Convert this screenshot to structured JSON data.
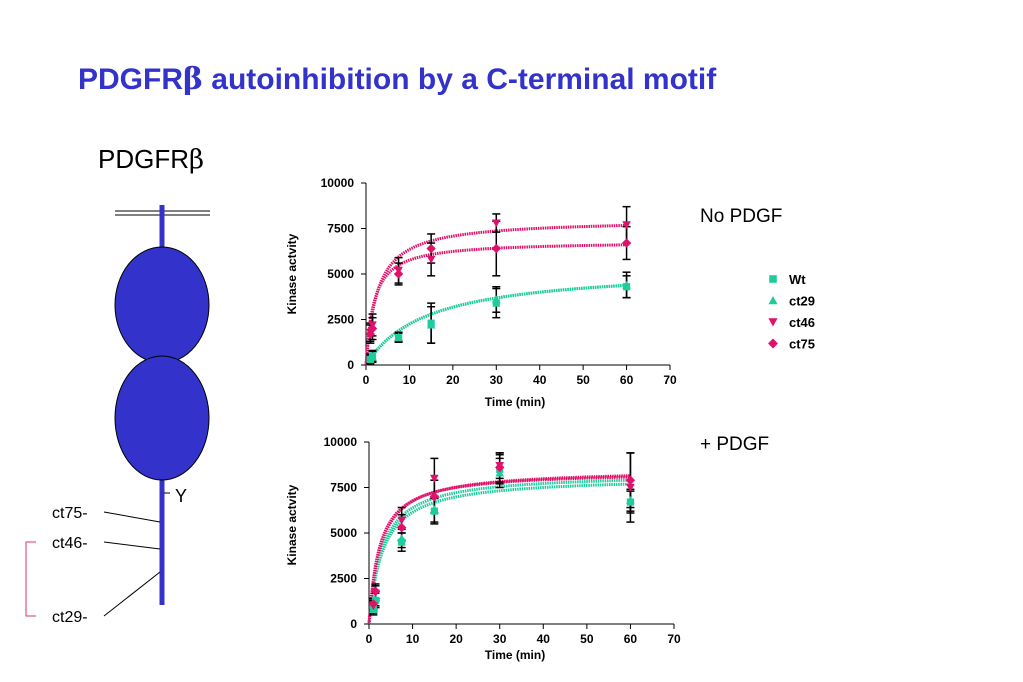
{
  "slide": {
    "title_prefix": "PDGFR",
    "title_suffix": " autoinhibition by a C-terminal motif"
  },
  "receptor": {
    "label": "PDGFR",
    "tyrosine_label": "Y",
    "truncations": [
      "ct75-",
      "ct46-",
      "ct29-"
    ],
    "domain_color": "#3333cc",
    "bracket_color": "#e0336f"
  },
  "legend": [
    {
      "name": "Wt",
      "marker": "square",
      "color": "#1fcc9c"
    },
    {
      "name": "ct29",
      "marker": "triangle-up",
      "color": "#1fcc9c"
    },
    {
      "name": "ct46",
      "marker": "triangle-down",
      "color": "#e0116a"
    },
    {
      "name": "ct75",
      "marker": "diamond",
      "color": "#e0116a"
    }
  ],
  "chart_data": [
    {
      "type": "scatter",
      "panel_label": "No PDGF",
      "xlabel": "Time (min)",
      "ylabel": "Kinase actvity",
      "xlim": [
        0,
        70
      ],
      "ylim": [
        0,
        10000
      ],
      "xticks": [
        0,
        10,
        20,
        30,
        40,
        50,
        60,
        70
      ],
      "yticks": [
        0,
        2500,
        5000,
        7500,
        10000
      ],
      "x": [
        1,
        1.5,
        7.5,
        15,
        30,
        60
      ],
      "series": [
        {
          "name": "Wt",
          "color": "#1fcc9c",
          "values": [
            300,
            500,
            1500,
            2300,
            3400,
            4300
          ],
          "errors": [
            250,
            300,
            250,
            1100,
            800,
            600
          ],
          "fit": {
            "vmax": 5400,
            "km": 14
          }
        },
        {
          "name": "ct29",
          "color": "#1fcc9c",
          "values": [
            350,
            450,
            1550,
            2200,
            3600,
            4400
          ],
          "errors": [
            250,
            300,
            250,
            1000,
            700,
            700
          ],
          "fit": {
            "vmax": 5400,
            "km": 14
          }
        },
        {
          "name": "ct46",
          "color": "#e0116a",
          "values": [
            1800,
            2200,
            5200,
            5800,
            7800,
            7700
          ],
          "errors": [
            500,
            600,
            700,
            900,
            500,
            1000
          ],
          "fit": {
            "vmax": 8000,
            "km": 2.6
          }
        },
        {
          "name": "ct75",
          "color": "#e0116a",
          "values": [
            1700,
            2000,
            5000,
            6400,
            6400,
            6700
          ],
          "errors": [
            500,
            600,
            600,
            800,
            1500,
            900
          ],
          "fit": {
            "vmax": 6800,
            "km": 1.8
          }
        }
      ]
    },
    {
      "type": "scatter",
      "panel_label": "+ PDGF",
      "xlabel": "Time (min)",
      "ylabel": "Kinase actvity",
      "xlim": [
        0,
        70
      ],
      "ylim": [
        0,
        10000
      ],
      "xticks": [
        0,
        10,
        20,
        30,
        40,
        50,
        60,
        70
      ],
      "yticks": [
        0,
        2500,
        5000,
        7500,
        10000
      ],
      "x": [
        1,
        1.5,
        7.5,
        15,
        30,
        60
      ],
      "series": [
        {
          "name": "Wt",
          "color": "#1fcc9c",
          "values": [
            900,
            1300,
            4500,
            6200,
            8500,
            6700
          ],
          "errors": [
            300,
            400,
            500,
            700,
            800,
            600
          ],
          "fit": {
            "vmax": 8100,
            "km": 3.2
          }
        },
        {
          "name": "ct29",
          "color": "#1fcc9c",
          "values": [
            800,
            1400,
            4700,
            6300,
            8300,
            6800
          ],
          "errors": [
            300,
            400,
            500,
            700,
            800,
            600
          ],
          "fit": {
            "vmax": 8300,
            "km": 3.0
          }
        },
        {
          "name": "ct46",
          "color": "#e0116a",
          "values": [
            1000,
            1700,
            5700,
            8000,
            8700,
            7500
          ],
          "errors": [
            300,
            400,
            700,
            1100,
            700,
            1900
          ],
          "fit": {
            "vmax": 8400,
            "km": 2.4
          }
        },
        {
          "name": "ct75",
          "color": "#e0116a",
          "values": [
            1100,
            1800,
            5300,
            7000,
            8600,
            7900
          ],
          "errors": [
            300,
            400,
            700,
            900,
            800,
            1500
          ],
          "fit": {
            "vmax": 8500,
            "km": 2.6
          }
        }
      ]
    }
  ]
}
